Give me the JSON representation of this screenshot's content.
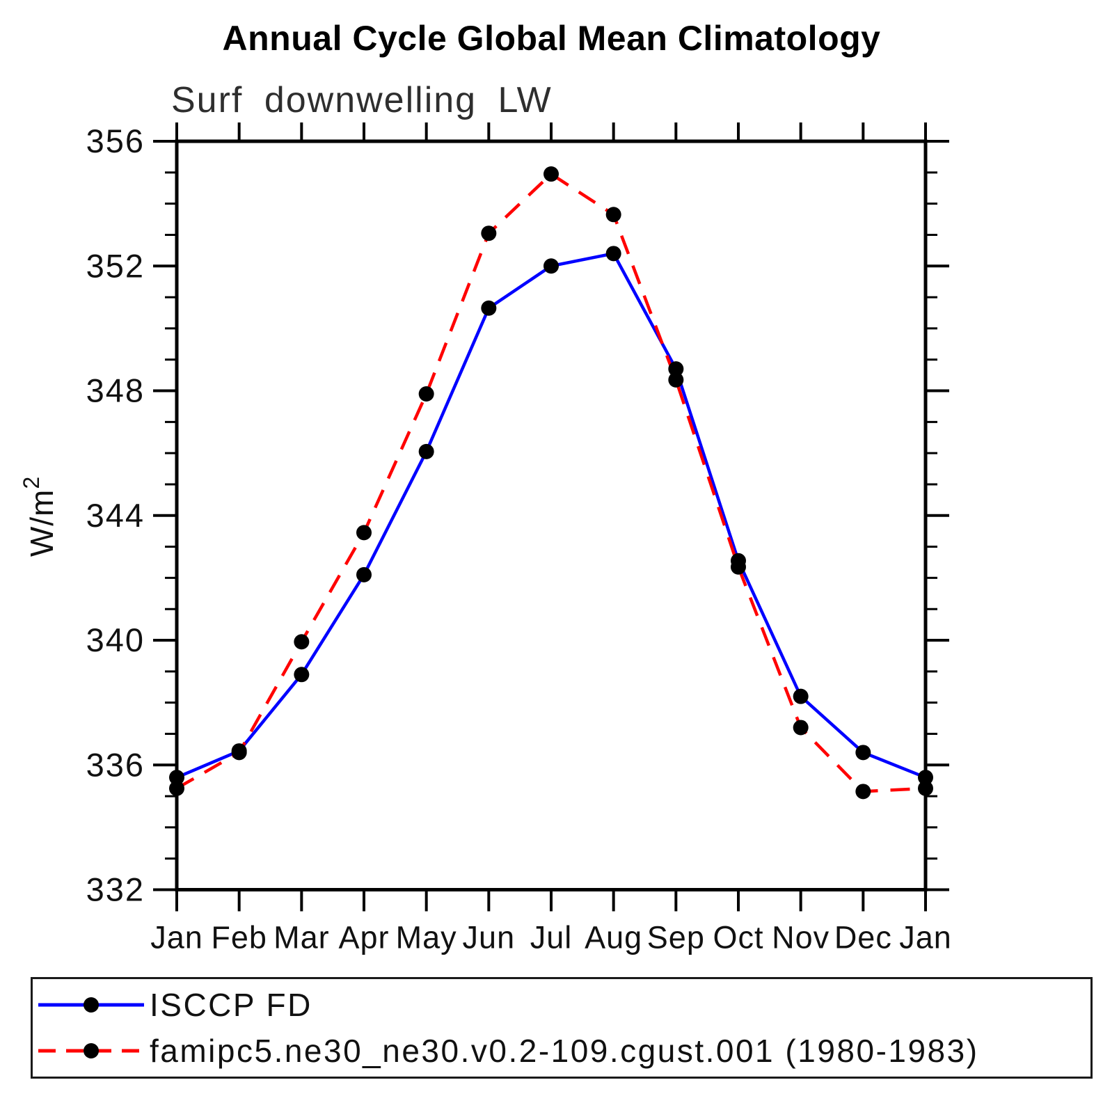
{
  "chart_data": {
    "type": "line",
    "title": "Annual Cycle Global Mean Climatology",
    "subtitle": "Surf downwelling LW",
    "xlabel": "",
    "ylabel_base": "W/m",
    "ylabel_exp": "2",
    "categories": [
      "Jan",
      "Feb",
      "Mar",
      "Apr",
      "May",
      "Jun",
      "Jul",
      "Aug",
      "Sep",
      "Oct",
      "Nov",
      "Dec",
      "Jan"
    ],
    "ylim": [
      332,
      356
    ],
    "ytick_major": [
      332,
      336,
      340,
      344,
      348,
      352,
      356
    ],
    "ytick_minor_step": 1,
    "grid": false,
    "legend_position": "bottom-box",
    "marker": {
      "shape": "circle",
      "color": "#000000"
    },
    "axis_color": "#000000",
    "series": [
      {
        "name": "ISCCP FD",
        "color": "#0000ff",
        "line_style": "solid",
        "values": [
          335.6,
          336.45,
          338.9,
          342.1,
          346.05,
          350.65,
          352.0,
          352.4,
          348.7,
          342.55,
          338.2,
          336.4,
          335.6
        ]
      },
      {
        "name": "famipc5.ne30_ne30.v0.2-109.cgust.001 (1980-1983)",
        "color": "#ff0000",
        "line_style": "dashed",
        "values": [
          335.25,
          336.4,
          339.95,
          343.45,
          347.9,
          353.05,
          354.95,
          353.65,
          348.35,
          342.35,
          337.2,
          335.15,
          335.25
        ]
      }
    ]
  }
}
